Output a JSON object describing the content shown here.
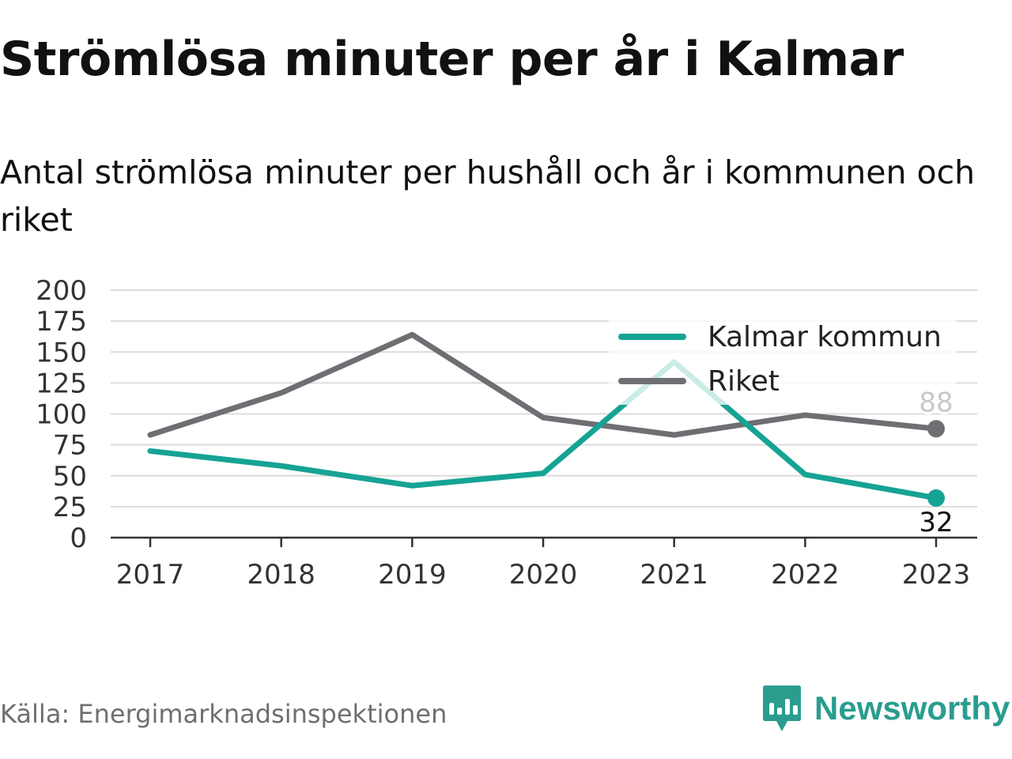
{
  "header": {
    "title": "Strömlösa minuter per år i Kalmar",
    "subtitle": "Antal strömlösa minuter per hushåll och år i kommunen och riket"
  },
  "footer": {
    "source": "Källa: Energimarknadsinspektionen",
    "brand": "Newsworthy"
  },
  "colors": {
    "kalmar": "#16a394",
    "riket": "#6e6e73",
    "grid": "#dcdcdc",
    "axis": "#333333",
    "brand": "#2a9d8f"
  },
  "chart_data": {
    "type": "line",
    "x": [
      "2017",
      "2018",
      "2019",
      "2020",
      "2021",
      "2022",
      "2023"
    ],
    "ylim": [
      0,
      200
    ],
    "yticks": [
      0,
      25,
      50,
      75,
      100,
      125,
      150,
      175,
      200
    ],
    "grid": true,
    "legend_position": "top-right",
    "series": [
      {
        "name": "Kalmar kommun",
        "color": "#16a394",
        "values": [
          70,
          58,
          42,
          52,
          142,
          51,
          32
        ],
        "end_label": "32"
      },
      {
        "name": "Riket",
        "color": "#6e6e73",
        "values": [
          83,
          117,
          164,
          97,
          83,
          99,
          88
        ],
        "end_label": "88"
      }
    ]
  }
}
